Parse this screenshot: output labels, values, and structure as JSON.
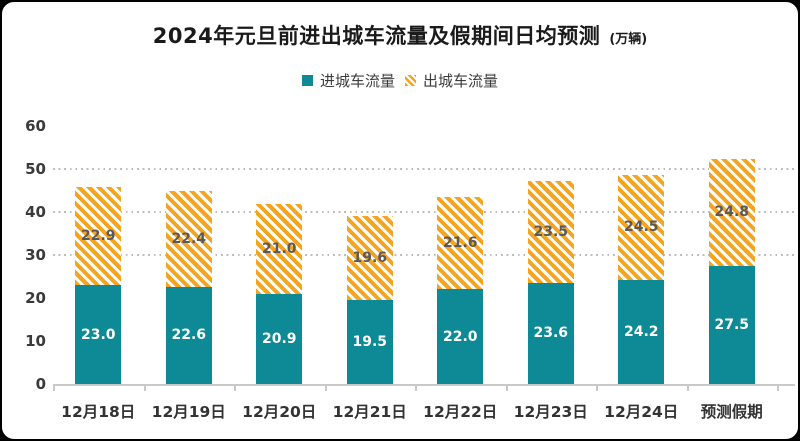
{
  "title": {
    "main": "2024年元旦前进出城车流量及假期间日均预测",
    "unit": "(万辆)"
  },
  "legend": [
    {
      "label": "进城车流量",
      "swatch": "solid-teal-square-icon"
    },
    {
      "label": "出城车流量",
      "swatch": "hatched-orange-square-icon"
    }
  ],
  "colors": {
    "inbound_teal": "#0d8a96",
    "outbound_orange": "#f5a41f",
    "inbound_value_text": "#ffffff",
    "outbound_value_text": "#58595b",
    "axis_text": "#3a3a3a",
    "gridline": "#bdbdbd",
    "axis_line": "#c9c9c9",
    "card_background": "#ffffff",
    "frame_background": "#000000"
  },
  "chart_data": {
    "type": "bar",
    "stacked": true,
    "title": "2024年元旦前进出城车流量及假期间日均预测 (万辆)",
    "categories": [
      "12月18日",
      "12月19日",
      "12月20日",
      "12月21日",
      "12月22日",
      "12月23日",
      "12月24日",
      "预测假期"
    ],
    "series": [
      {
        "name": "进城车流量",
        "style": "solid",
        "color": "#0d8a96",
        "values": [
          23.0,
          22.6,
          20.9,
          19.5,
          22.0,
          23.6,
          24.2,
          27.5
        ]
      },
      {
        "name": "出城车流量",
        "style": "diagonal-hatch",
        "color": "#f5a41f",
        "values": [
          22.9,
          22.4,
          21.0,
          19.6,
          21.6,
          23.5,
          24.5,
          24.8
        ]
      }
    ],
    "xlabel": "",
    "ylabel": "",
    "ylim": [
      0,
      60
    ],
    "yticks": [
      0,
      10,
      20,
      30,
      40,
      50,
      60
    ],
    "gridlines_at": [
      30,
      40,
      50
    ],
    "grid_style": "dotted",
    "legend_position": "top-center",
    "value_labels": "inside-center",
    "value_format": "one-decimal"
  }
}
